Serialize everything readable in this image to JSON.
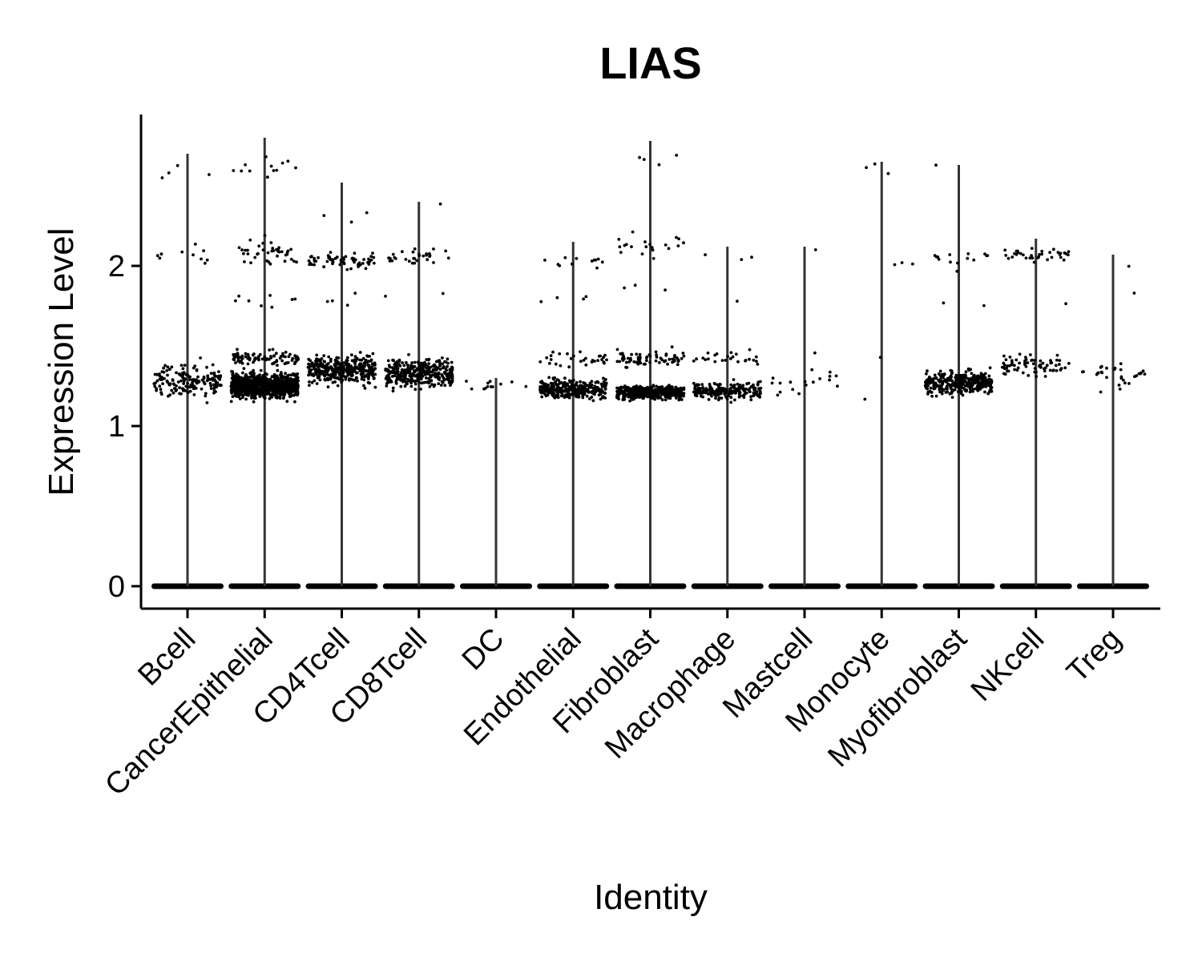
{
  "chart_data": {
    "type": "scatter",
    "subtype": "violin-jitter",
    "title": "LIAS",
    "xlabel": "Identity",
    "ylabel": "Expression Level",
    "ylim": [
      -0.14,
      2.95
    ],
    "yticks": [
      0,
      1,
      2
    ],
    "grid": false,
    "legend": "none",
    "colors": {
      "points": "#000000",
      "violin": "#333333",
      "axis": "#000000"
    },
    "categories": [
      "Bcell",
      "CancerEpithelial",
      "CD4Tcell",
      "CD8Tcell",
      "DC",
      "Endothelial",
      "Fibroblast",
      "Macrophage",
      "Mastcell",
      "Monocyte",
      "Myofibroblast",
      "NKcell",
      "Treg"
    ],
    "series": [
      {
        "category": "Bcell",
        "violin_max": 2.7,
        "clusters": [
          {
            "center": 1.28,
            "spread": 0.09,
            "count": 160
          },
          {
            "center": 2.08,
            "spread": 0.06,
            "count": 10
          },
          {
            "center": 2.6,
            "spread": 0.06,
            "count": 4
          }
        ]
      },
      {
        "category": "CancerEpithelial",
        "violin_max": 2.8,
        "clusters": [
          {
            "center": 1.25,
            "spread": 0.07,
            "count": 900
          },
          {
            "center": 1.42,
            "spread": 0.04,
            "count": 90
          },
          {
            "center": 2.08,
            "spread": 0.09,
            "count": 40
          },
          {
            "center": 1.78,
            "spread": 0.04,
            "count": 8
          },
          {
            "center": 2.62,
            "spread": 0.07,
            "count": 12
          }
        ]
      },
      {
        "category": "CD4Tcell",
        "violin_max": 2.52,
        "clusters": [
          {
            "center": 1.35,
            "spread": 0.08,
            "count": 380
          },
          {
            "center": 2.03,
            "spread": 0.05,
            "count": 60
          },
          {
            "center": 2.3,
            "spread": 0.04,
            "count": 3
          },
          {
            "center": 1.8,
            "spread": 0.05,
            "count": 4
          }
        ]
      },
      {
        "category": "CD8Tcell",
        "violin_max": 2.4,
        "clusters": [
          {
            "center": 1.33,
            "spread": 0.08,
            "count": 340
          },
          {
            "center": 2.05,
            "spread": 0.05,
            "count": 30
          },
          {
            "center": 1.82,
            "spread": 0.02,
            "count": 2
          },
          {
            "center": 2.38,
            "spread": 0.01,
            "count": 1
          }
        ]
      },
      {
        "category": "DC",
        "violin_max": 1.3,
        "clusters": [
          {
            "center": 1.25,
            "spread": 0.03,
            "count": 12
          }
        ]
      },
      {
        "category": "Endothelial",
        "violin_max": 2.15,
        "clusters": [
          {
            "center": 1.23,
            "spread": 0.06,
            "count": 300
          },
          {
            "center": 1.42,
            "spread": 0.04,
            "count": 30
          },
          {
            "center": 2.03,
            "spread": 0.05,
            "count": 12
          },
          {
            "center": 1.8,
            "spread": 0.03,
            "count": 4
          }
        ]
      },
      {
        "category": "Fibroblast",
        "violin_max": 2.78,
        "clusters": [
          {
            "center": 1.21,
            "spread": 0.04,
            "count": 420
          },
          {
            "center": 1.42,
            "spread": 0.05,
            "count": 70
          },
          {
            "center": 2.1,
            "spread": 0.08,
            "count": 20
          },
          {
            "center": 2.65,
            "spread": 0.06,
            "count": 4
          },
          {
            "center": 1.85,
            "spread": 0.05,
            "count": 3
          }
        ]
      },
      {
        "category": "Macrophage",
        "violin_max": 2.12,
        "clusters": [
          {
            "center": 1.22,
            "spread": 0.05,
            "count": 200
          },
          {
            "center": 1.42,
            "spread": 0.04,
            "count": 25
          },
          {
            "center": 2.05,
            "spread": 0.04,
            "count": 3
          },
          {
            "center": 1.78,
            "spread": 0.01,
            "count": 1
          }
        ]
      },
      {
        "category": "Mastcell",
        "violin_max": 2.12,
        "clusters": [
          {
            "center": 1.27,
            "spread": 0.06,
            "count": 18
          },
          {
            "center": 2.1,
            "spread": 0.01,
            "count": 1
          },
          {
            "center": 1.45,
            "spread": 0.01,
            "count": 1
          }
        ]
      },
      {
        "category": "Monocyte",
        "violin_max": 2.65,
        "clusters": [
          {
            "center": 2.02,
            "spread": 0.02,
            "count": 3
          },
          {
            "center": 2.6,
            "spread": 0.03,
            "count": 3
          },
          {
            "center": 1.42,
            "spread": 0.01,
            "count": 1
          },
          {
            "center": 1.17,
            "spread": 0.01,
            "count": 1
          }
        ]
      },
      {
        "category": "Myofibroblast",
        "violin_max": 2.63,
        "clusters": [
          {
            "center": 1.27,
            "spread": 0.07,
            "count": 340
          },
          {
            "center": 2.05,
            "spread": 0.06,
            "count": 14
          },
          {
            "center": 2.63,
            "spread": 0.01,
            "count": 1
          },
          {
            "center": 1.77,
            "spread": 0.02,
            "count": 2
          }
        ]
      },
      {
        "category": "NKcell",
        "violin_max": 2.17,
        "clusters": [
          {
            "center": 1.38,
            "spread": 0.07,
            "count": 70
          },
          {
            "center": 2.07,
            "spread": 0.04,
            "count": 35
          },
          {
            "center": 1.76,
            "spread": 0.01,
            "count": 1
          }
        ]
      },
      {
        "category": "Treg",
        "violin_max": 2.07,
        "clusters": [
          {
            "center": 1.32,
            "spread": 0.08,
            "count": 30
          },
          {
            "center": 2.0,
            "spread": 0.01,
            "count": 1
          },
          {
            "center": 1.83,
            "spread": 0.01,
            "count": 1
          }
        ]
      }
    ]
  }
}
